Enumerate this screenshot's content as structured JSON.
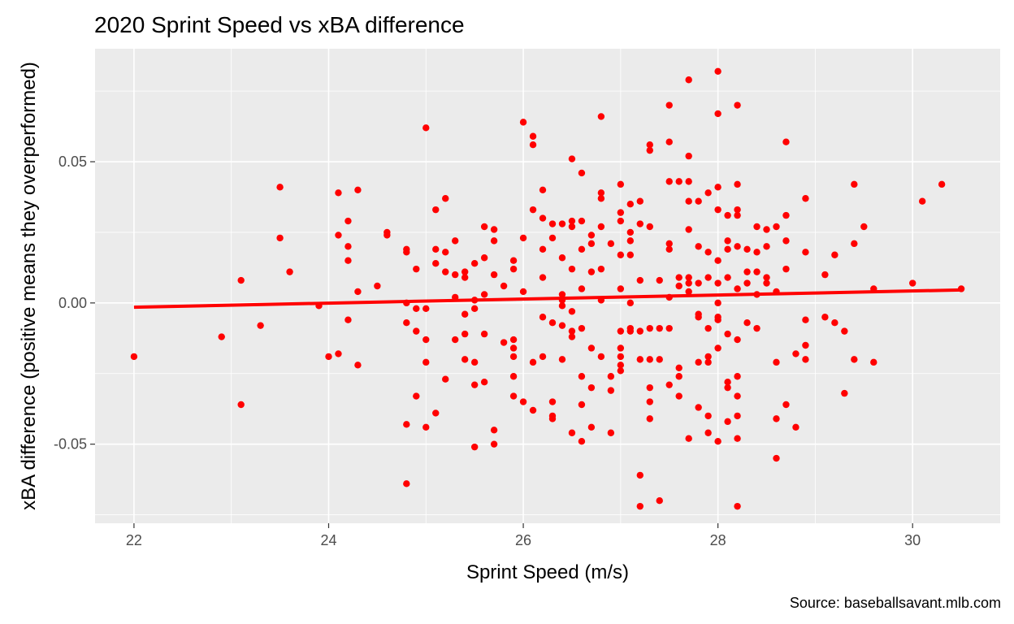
{
  "chart_data": {
    "type": "scatter",
    "title": "2020 Sprint Speed vs xBA difference",
    "xlabel": "Sprint Speed (m/s)",
    "ylabel": "xBA difference (positive means they overperformed)",
    "caption": "Source: baseballsavant.mlb.com",
    "xlim": [
      21.6,
      30.9
    ],
    "ylim": [
      -0.078,
      0.09
    ],
    "x_ticks": [
      22,
      24,
      26,
      28,
      30
    ],
    "x_tick_labels": [
      "22",
      "24",
      "26",
      "28",
      "30"
    ],
    "y_ticks": [
      -0.05,
      0.0,
      0.05
    ],
    "y_tick_labels": [
      "-0.05",
      "0.00",
      "0.05"
    ],
    "grid": true,
    "panel_color": "#ebebeb",
    "grid_color": "#ffffff",
    "point_color": "#ff0000",
    "trend_line": {
      "color": "#ff0000",
      "x": [
        22.0,
        30.5
      ],
      "y": [
        -0.0015,
        0.0046
      ]
    },
    "points": [
      [
        22.0,
        -0.019
      ],
      [
        22.9,
        -0.012
      ],
      [
        23.1,
        0.008
      ],
      [
        23.1,
        -0.036
      ],
      [
        23.3,
        -0.008
      ],
      [
        23.5,
        0.041
      ],
      [
        23.5,
        0.023
      ],
      [
        23.6,
        0.011
      ],
      [
        23.9,
        -0.001
      ],
      [
        24.0,
        -0.019
      ],
      [
        24.1,
        0.039
      ],
      [
        24.1,
        0.024
      ],
      [
        24.1,
        -0.018
      ],
      [
        24.2,
        0.029
      ],
      [
        24.2,
        0.02
      ],
      [
        24.2,
        0.015
      ],
      [
        24.2,
        -0.006
      ],
      [
        24.3,
        0.04
      ],
      [
        24.3,
        0.004
      ],
      [
        24.3,
        -0.022
      ],
      [
        24.5,
        0.006
      ],
      [
        24.6,
        0.025
      ],
      [
        24.6,
        0.024
      ],
      [
        24.8,
        0.019
      ],
      [
        24.8,
        0.018
      ],
      [
        24.8,
        0.0
      ],
      [
        24.8,
        -0.007
      ],
      [
        24.8,
        -0.043
      ],
      [
        24.8,
        -0.064
      ],
      [
        24.9,
        0.012
      ],
      [
        24.9,
        -0.002
      ],
      [
        24.9,
        -0.01
      ],
      [
        24.9,
        -0.033
      ],
      [
        25.0,
        0.062
      ],
      [
        25.0,
        -0.002
      ],
      [
        25.0,
        -0.013
      ],
      [
        25.0,
        -0.021
      ],
      [
        25.0,
        -0.044
      ],
      [
        25.1,
        0.033
      ],
      [
        25.1,
        0.019
      ],
      [
        25.1,
        0.014
      ],
      [
        25.1,
        -0.039
      ],
      [
        25.2,
        0.037
      ],
      [
        25.2,
        0.018
      ],
      [
        25.2,
        0.011
      ],
      [
        25.2,
        -0.027
      ],
      [
        25.3,
        0.022
      ],
      [
        25.3,
        0.01
      ],
      [
        25.3,
        0.002
      ],
      [
        25.3,
        -0.013
      ],
      [
        25.4,
        0.011
      ],
      [
        25.4,
        0.009
      ],
      [
        25.4,
        -0.004
      ],
      [
        25.4,
        -0.011
      ],
      [
        25.4,
        -0.02
      ],
      [
        25.5,
        0.014
      ],
      [
        25.5,
        0.001
      ],
      [
        25.5,
        -0.002
      ],
      [
        25.5,
        -0.021
      ],
      [
        25.5,
        -0.029
      ],
      [
        25.5,
        -0.051
      ],
      [
        25.6,
        0.027
      ],
      [
        25.6,
        0.016
      ],
      [
        25.6,
        0.003
      ],
      [
        25.6,
        -0.011
      ],
      [
        25.6,
        -0.028
      ],
      [
        25.7,
        0.026
      ],
      [
        25.7,
        0.022
      ],
      [
        25.7,
        0.01
      ],
      [
        25.7,
        -0.045
      ],
      [
        25.7,
        -0.05
      ],
      [
        25.8,
        0.006
      ],
      [
        25.8,
        -0.014
      ],
      [
        25.9,
        0.015
      ],
      [
        25.9,
        0.012
      ],
      [
        25.9,
        -0.013
      ],
      [
        25.9,
        -0.016
      ],
      [
        25.9,
        -0.019
      ],
      [
        25.9,
        -0.026
      ],
      [
        25.9,
        -0.033
      ],
      [
        26.0,
        0.064
      ],
      [
        26.0,
        0.023
      ],
      [
        26.0,
        0.004
      ],
      [
        26.0,
        -0.035
      ],
      [
        26.1,
        0.059
      ],
      [
        26.1,
        0.056
      ],
      [
        26.1,
        0.033
      ],
      [
        26.1,
        -0.021
      ],
      [
        26.1,
        -0.038
      ],
      [
        26.2,
        0.04
      ],
      [
        26.2,
        0.03
      ],
      [
        26.2,
        0.019
      ],
      [
        26.2,
        0.009
      ],
      [
        26.2,
        -0.005
      ],
      [
        26.2,
        -0.019
      ],
      [
        26.3,
        0.028
      ],
      [
        26.3,
        0.023
      ],
      [
        26.3,
        -0.007
      ],
      [
        26.3,
        -0.035
      ],
      [
        26.3,
        -0.04
      ],
      [
        26.3,
        -0.041
      ],
      [
        26.4,
        0.028
      ],
      [
        26.4,
        0.016
      ],
      [
        26.4,
        0.003
      ],
      [
        26.4,
        0.001
      ],
      [
        26.4,
        -0.001
      ],
      [
        26.4,
        -0.008
      ],
      [
        26.4,
        -0.02
      ],
      [
        26.5,
        0.051
      ],
      [
        26.5,
        0.029
      ],
      [
        26.5,
        0.027
      ],
      [
        26.5,
        0.012
      ],
      [
        26.5,
        -0.003
      ],
      [
        26.5,
        -0.01
      ],
      [
        26.5,
        -0.012
      ],
      [
        26.5,
        -0.046
      ],
      [
        26.6,
        0.046
      ],
      [
        26.6,
        0.029
      ],
      [
        26.6,
        0.019
      ],
      [
        26.6,
        0.005
      ],
      [
        26.6,
        -0.009
      ],
      [
        26.6,
        -0.026
      ],
      [
        26.6,
        -0.036
      ],
      [
        26.6,
        -0.049
      ],
      [
        26.7,
        0.024
      ],
      [
        26.7,
        0.021
      ],
      [
        26.7,
        0.011
      ],
      [
        26.7,
        -0.016
      ],
      [
        26.7,
        -0.03
      ],
      [
        26.7,
        -0.044
      ],
      [
        26.8,
        0.066
      ],
      [
        26.8,
        0.039
      ],
      [
        26.8,
        0.037
      ],
      [
        26.8,
        0.027
      ],
      [
        26.8,
        0.012
      ],
      [
        26.8,
        0.001
      ],
      [
        26.8,
        -0.019
      ],
      [
        26.9,
        0.021
      ],
      [
        26.9,
        -0.026
      ],
      [
        26.9,
        -0.031
      ],
      [
        26.9,
        -0.046
      ],
      [
        27.0,
        0.042
      ],
      [
        27.0,
        0.032
      ],
      [
        27.0,
        0.029
      ],
      [
        27.0,
        0.017
      ],
      [
        27.0,
        0.005
      ],
      [
        27.0,
        -0.01
      ],
      [
        27.0,
        -0.016
      ],
      [
        27.0,
        -0.019
      ],
      [
        27.0,
        -0.022
      ],
      [
        27.0,
        -0.024
      ],
      [
        27.1,
        0.035
      ],
      [
        27.1,
        0.025
      ],
      [
        27.1,
        0.022
      ],
      [
        27.1,
        0.017
      ],
      [
        27.1,
        0.0
      ],
      [
        27.1,
        -0.009
      ],
      [
        27.1,
        -0.01
      ],
      [
        27.2,
        0.036
      ],
      [
        27.2,
        0.028
      ],
      [
        27.2,
        0.008
      ],
      [
        27.2,
        -0.01
      ],
      [
        27.2,
        -0.02
      ],
      [
        27.2,
        -0.061
      ],
      [
        27.2,
        -0.072
      ],
      [
        27.3,
        0.056
      ],
      [
        27.3,
        0.054
      ],
      [
        27.3,
        0.027
      ],
      [
        27.3,
        -0.009
      ],
      [
        27.3,
        -0.02
      ],
      [
        27.3,
        -0.03
      ],
      [
        27.3,
        -0.035
      ],
      [
        27.3,
        -0.041
      ],
      [
        27.4,
        0.008
      ],
      [
        27.4,
        -0.009
      ],
      [
        27.4,
        -0.02
      ],
      [
        27.4,
        -0.07
      ],
      [
        27.5,
        0.07
      ],
      [
        27.5,
        0.057
      ],
      [
        27.5,
        0.043
      ],
      [
        27.5,
        0.021
      ],
      [
        27.5,
        0.019
      ],
      [
        27.5,
        0.002
      ],
      [
        27.5,
        -0.009
      ],
      [
        27.5,
        -0.029
      ],
      [
        27.6,
        0.043
      ],
      [
        27.6,
        0.009
      ],
      [
        27.6,
        0.006
      ],
      [
        27.6,
        -0.023
      ],
      [
        27.6,
        -0.026
      ],
      [
        27.6,
        -0.033
      ],
      [
        27.7,
        0.079
      ],
      [
        27.7,
        0.052
      ],
      [
        27.7,
        0.043
      ],
      [
        27.7,
        0.036
      ],
      [
        27.7,
        0.026
      ],
      [
        27.7,
        0.009
      ],
      [
        27.7,
        0.007
      ],
      [
        27.7,
        0.004
      ],
      [
        27.7,
        -0.048
      ],
      [
        27.8,
        0.036
      ],
      [
        27.8,
        0.02
      ],
      [
        27.8,
        0.007
      ],
      [
        27.8,
        -0.004
      ],
      [
        27.8,
        -0.005
      ],
      [
        27.8,
        -0.021
      ],
      [
        27.8,
        -0.037
      ],
      [
        27.9,
        0.039
      ],
      [
        27.9,
        0.018
      ],
      [
        27.9,
        0.009
      ],
      [
        27.9,
        -0.009
      ],
      [
        27.9,
        -0.019
      ],
      [
        27.9,
        -0.021
      ],
      [
        27.9,
        -0.04
      ],
      [
        27.9,
        -0.046
      ],
      [
        28.0,
        0.082
      ],
      [
        28.0,
        0.067
      ],
      [
        28.0,
        0.041
      ],
      [
        28.0,
        0.033
      ],
      [
        28.0,
        0.015
      ],
      [
        28.0,
        0.007
      ],
      [
        28.0,
        0.0
      ],
      [
        28.0,
        -0.005
      ],
      [
        28.0,
        -0.006
      ],
      [
        28.0,
        -0.016
      ],
      [
        28.0,
        -0.049
      ],
      [
        28.1,
        0.031
      ],
      [
        28.1,
        0.022
      ],
      [
        28.1,
        0.019
      ],
      [
        28.1,
        0.009
      ],
      [
        28.1,
        -0.011
      ],
      [
        28.1,
        -0.028
      ],
      [
        28.1,
        -0.03
      ],
      [
        28.1,
        -0.042
      ],
      [
        28.2,
        0.07
      ],
      [
        28.2,
        0.042
      ],
      [
        28.2,
        0.033
      ],
      [
        28.2,
        0.031
      ],
      [
        28.2,
        0.02
      ],
      [
        28.2,
        0.005
      ],
      [
        28.2,
        -0.013
      ],
      [
        28.2,
        -0.026
      ],
      [
        28.2,
        -0.033
      ],
      [
        28.2,
        -0.04
      ],
      [
        28.2,
        -0.048
      ],
      [
        28.2,
        -0.072
      ],
      [
        28.3,
        0.019
      ],
      [
        28.3,
        0.011
      ],
      [
        28.3,
        0.007
      ],
      [
        28.3,
        -0.007
      ],
      [
        28.4,
        0.027
      ],
      [
        28.4,
        0.018
      ],
      [
        28.4,
        0.011
      ],
      [
        28.4,
        0.003
      ],
      [
        28.4,
        -0.009
      ],
      [
        28.5,
        0.026
      ],
      [
        28.5,
        0.02
      ],
      [
        28.5,
        0.009
      ],
      [
        28.5,
        0.007
      ],
      [
        28.6,
        0.027
      ],
      [
        28.6,
        0.004
      ],
      [
        28.6,
        -0.021
      ],
      [
        28.6,
        -0.041
      ],
      [
        28.6,
        -0.055
      ],
      [
        28.7,
        0.057
      ],
      [
        28.7,
        0.031
      ],
      [
        28.7,
        0.022
      ],
      [
        28.7,
        0.012
      ],
      [
        28.7,
        -0.036
      ],
      [
        28.8,
        -0.018
      ],
      [
        28.8,
        -0.044
      ],
      [
        28.9,
        0.037
      ],
      [
        28.9,
        0.018
      ],
      [
        28.9,
        -0.006
      ],
      [
        28.9,
        -0.015
      ],
      [
        28.9,
        -0.02
      ],
      [
        29.1,
        0.01
      ],
      [
        29.1,
        -0.005
      ],
      [
        29.2,
        0.017
      ],
      [
        29.2,
        -0.007
      ],
      [
        29.3,
        -0.01
      ],
      [
        29.3,
        -0.032
      ],
      [
        29.4,
        0.042
      ],
      [
        29.4,
        0.021
      ],
      [
        29.4,
        -0.02
      ],
      [
        29.5,
        0.027
      ],
      [
        29.6,
        0.005
      ],
      [
        29.6,
        -0.021
      ],
      [
        30.0,
        0.007
      ],
      [
        30.1,
        0.036
      ],
      [
        30.3,
        0.042
      ],
      [
        30.5,
        0.005
      ]
    ]
  }
}
